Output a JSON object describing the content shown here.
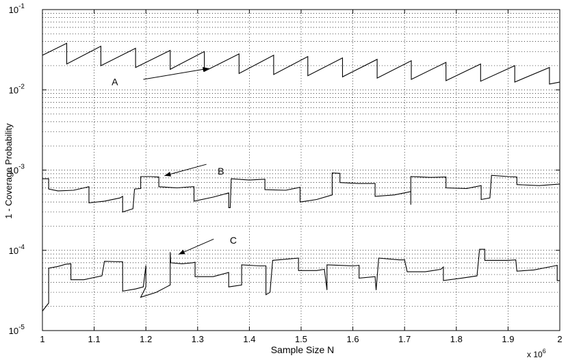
{
  "chart_data": {
    "type": "line",
    "title": "",
    "xlabel": "Sample Size N",
    "ylabel": "1 - Coverage Probability",
    "x_multiplier_base": "x 10",
    "x_multiplier_exp": "6",
    "xlim": [
      1,
      2
    ],
    "ylim": [
      1e-05,
      0.1
    ],
    "yscale": "log",
    "grid": true,
    "x_ticks": [
      "1",
      "1.1",
      "1.2",
      "1.3",
      "1.4",
      "1.5",
      "1.6",
      "1.7",
      "1.8",
      "1.9",
      "2"
    ],
    "y_ticks": [
      {
        "value": 1e-05,
        "base": "10",
        "exp": "-5"
      },
      {
        "value": 0.0001,
        "base": "10",
        "exp": "-4"
      },
      {
        "value": 0.001,
        "base": "10",
        "exp": "-3"
      },
      {
        "value": 0.01,
        "base": "10",
        "exp": "-2"
      },
      {
        "value": 0.1,
        "base": "10",
        "exp": "-1"
      }
    ],
    "series": [
      {
        "label": "A",
        "points": [
          [
            1.0,
            0.027
          ],
          [
            1.047,
            0.038
          ],
          [
            1.047,
            0.021
          ],
          [
            1.113,
            0.035
          ],
          [
            1.113,
            0.02
          ],
          [
            1.18,
            0.033
          ],
          [
            1.18,
            0.019
          ],
          [
            1.247,
            0.031
          ],
          [
            1.247,
            0.018
          ],
          [
            1.313,
            0.03
          ],
          [
            1.313,
            0.017
          ],
          [
            1.38,
            0.028
          ],
          [
            1.38,
            0.016
          ],
          [
            1.447,
            0.027
          ],
          [
            1.447,
            0.0155
          ],
          [
            1.513,
            0.026
          ],
          [
            1.513,
            0.015
          ],
          [
            1.58,
            0.025
          ],
          [
            1.58,
            0.0145
          ],
          [
            1.647,
            0.024
          ],
          [
            1.647,
            0.014
          ],
          [
            1.713,
            0.023
          ],
          [
            1.713,
            0.0135
          ],
          [
            1.78,
            0.022
          ],
          [
            1.78,
            0.013
          ],
          [
            1.847,
            0.021
          ],
          [
            1.847,
            0.0128
          ],
          [
            1.913,
            0.02
          ],
          [
            1.913,
            0.0125
          ],
          [
            1.98,
            0.019
          ],
          [
            1.98,
            0.0118
          ],
          [
            2.0,
            0.0125
          ]
        ]
      },
      {
        "label": "B",
        "points": [
          [
            1.0,
            0.00078
          ],
          [
            1.012,
            0.00078
          ],
          [
            1.012,
            0.00058
          ],
          [
            1.03,
            0.00055
          ],
          [
            1.06,
            0.00056
          ],
          [
            1.09,
            0.00062
          ],
          [
            1.09,
            0.00039
          ],
          [
            1.12,
            0.00041
          ],
          [
            1.15,
            0.00045
          ],
          [
            1.155,
            0.00047
          ],
          [
            1.155,
            0.0003
          ],
          [
            1.175,
            0.00033
          ],
          [
            1.178,
            0.00058
          ],
          [
            1.19,
            0.00059
          ],
          [
            1.19,
            0.00083
          ],
          [
            1.21,
            0.00083
          ],
          [
            1.22,
            0.00082
          ],
          [
            1.225,
            0.00082
          ],
          [
            1.225,
            0.00062
          ],
          [
            1.26,
            0.0006
          ],
          [
            1.29,
            0.00062
          ],
          [
            1.293,
            0.00062
          ],
          [
            1.293,
            0.00041
          ],
          [
            1.33,
            0.00046
          ],
          [
            1.36,
            0.00052
          ],
          [
            1.36,
            0.00034
          ],
          [
            1.363,
            0.00034
          ],
          [
            1.365,
            0.00078
          ],
          [
            1.4,
            0.00075
          ],
          [
            1.43,
            0.00077
          ],
          [
            1.43,
            0.00057
          ],
          [
            1.47,
            0.00056
          ],
          [
            1.498,
            0.00061
          ],
          [
            1.498,
            0.0004
          ],
          [
            1.53,
            0.00043
          ],
          [
            1.56,
            0.00049
          ],
          [
            1.56,
            0.00092
          ],
          [
            1.575,
            0.00091
          ],
          [
            1.575,
            0.0007
          ],
          [
            1.61,
            0.00068
          ],
          [
            1.643,
            0.00068
          ],
          [
            1.643,
            0.00047
          ],
          [
            1.68,
            0.00049
          ],
          [
            1.712,
            0.00054
          ],
          [
            1.712,
            0.00037
          ],
          [
            1.712,
            0.00083
          ],
          [
            1.75,
            0.00081
          ],
          [
            1.78,
            0.00082
          ],
          [
            1.78,
            0.0006
          ],
          [
            1.82,
            0.00059
          ],
          [
            1.848,
            0.00064
          ],
          [
            1.848,
            0.00043
          ],
          [
            1.865,
            0.00045
          ],
          [
            1.868,
            0.00086
          ],
          [
            1.9,
            0.00083
          ],
          [
            1.917,
            0.00082
          ],
          [
            1.917,
            0.00066
          ],
          [
            1.96,
            0.00064
          ],
          [
            2.0,
            0.00067
          ]
        ]
      },
      {
        "label": "C",
        "points": [
          [
            1.0,
            1.75e-05
          ],
          [
            1.012,
            2.2e-05
          ],
          [
            1.012,
            6e-05
          ],
          [
            1.03,
            6.3e-05
          ],
          [
            1.045,
            6.7e-05
          ],
          [
            1.055,
            6.8e-05
          ],
          [
            1.055,
            4.3e-05
          ],
          [
            1.08,
            4.3e-05
          ],
          [
            1.115,
            4.8e-05
          ],
          [
            1.12,
            7.3e-05
          ],
          [
            1.15,
            7.2e-05
          ],
          [
            1.155,
            7.2e-05
          ],
          [
            1.155,
            3.1e-05
          ],
          [
            1.18,
            3.3e-05
          ],
          [
            1.195,
            3.5e-05
          ],
          [
            1.2,
            6.5e-05
          ],
          [
            1.2,
            3.5e-05
          ],
          [
            1.19,
            2.6e-05
          ],
          [
            1.22,
            3e-05
          ],
          [
            1.24,
            3.5e-05
          ],
          [
            1.247,
            3.7e-05
          ],
          [
            1.247,
            9.5e-05
          ],
          [
            1.248,
            7e-05
          ],
          [
            1.27,
            6.8e-05
          ],
          [
            1.29,
            7e-05
          ],
          [
            1.295,
            7.1e-05
          ],
          [
            1.295,
            4.7e-05
          ],
          [
            1.33,
            4.7e-05
          ],
          [
            1.36,
            5.3e-05
          ],
          [
            1.36,
            3.5e-05
          ],
          [
            1.385,
            3.7e-05
          ],
          [
            1.385,
            6.6e-05
          ],
          [
            1.42,
            6.4e-05
          ],
          [
            1.432,
            6.4e-05
          ],
          [
            1.432,
            2.8e-05
          ],
          [
            1.44,
            3e-05
          ],
          [
            1.445,
            7.5e-05
          ],
          [
            1.495,
            8e-05
          ],
          [
            1.495,
            5.6e-05
          ],
          [
            1.53,
            5.6e-05
          ],
          [
            1.545,
            5.8e-05
          ],
          [
            1.55,
            3.2e-05
          ],
          [
            1.55,
            6.6e-05
          ],
          [
            1.6,
            6.4e-05
          ],
          [
            1.612,
            6.5e-05
          ],
          [
            1.612,
            4.5e-05
          ],
          [
            1.643,
            4.7e-05
          ],
          [
            1.645,
            3.2e-05
          ],
          [
            1.65,
            8e-05
          ],
          [
            1.69,
            7.6e-05
          ],
          [
            1.7,
            7.6e-05
          ],
          [
            1.705,
            5.4e-05
          ],
          [
            1.74,
            5.4e-05
          ],
          [
            1.77,
            5.8e-05
          ],
          [
            1.775,
            6.2e-05
          ],
          [
            1.775,
            4.2e-05
          ],
          [
            1.81,
            4.5e-05
          ],
          [
            1.84,
            4.8e-05
          ],
          [
            1.845,
            0.000103
          ],
          [
            1.855,
            0.000103
          ],
          [
            1.855,
            7.5e-05
          ],
          [
            1.9,
            7.5e-05
          ],
          [
            1.915,
            7.6e-05
          ],
          [
            1.917,
            5.5e-05
          ],
          [
            1.95,
            5.7e-05
          ],
          [
            1.99,
            6.4e-05
          ],
          [
            1.995,
            6.5e-05
          ],
          [
            1.995,
            4.2e-05
          ],
          [
            2.0,
            4.2e-05
          ]
        ]
      }
    ],
    "annotations": [
      {
        "text": "A",
        "label_at": [
          1.14,
          0.0126
        ],
        "arrow_from": [
          1.195,
          0.0135
        ],
        "arrow_to": [
          1.322,
          0.0185
        ]
      },
      {
        "text": "B",
        "label_at": [
          1.345,
          0.00097
        ],
        "arrow_from": [
          1.317,
          0.00118
        ],
        "arrow_to": [
          1.236,
          0.00085
        ]
      },
      {
        "text": "C",
        "label_at": [
          1.369,
          0.000133
        ],
        "arrow_from": [
          1.331,
          0.000138
        ],
        "arrow_to": [
          1.263,
          8.9e-05
        ]
      }
    ]
  }
}
